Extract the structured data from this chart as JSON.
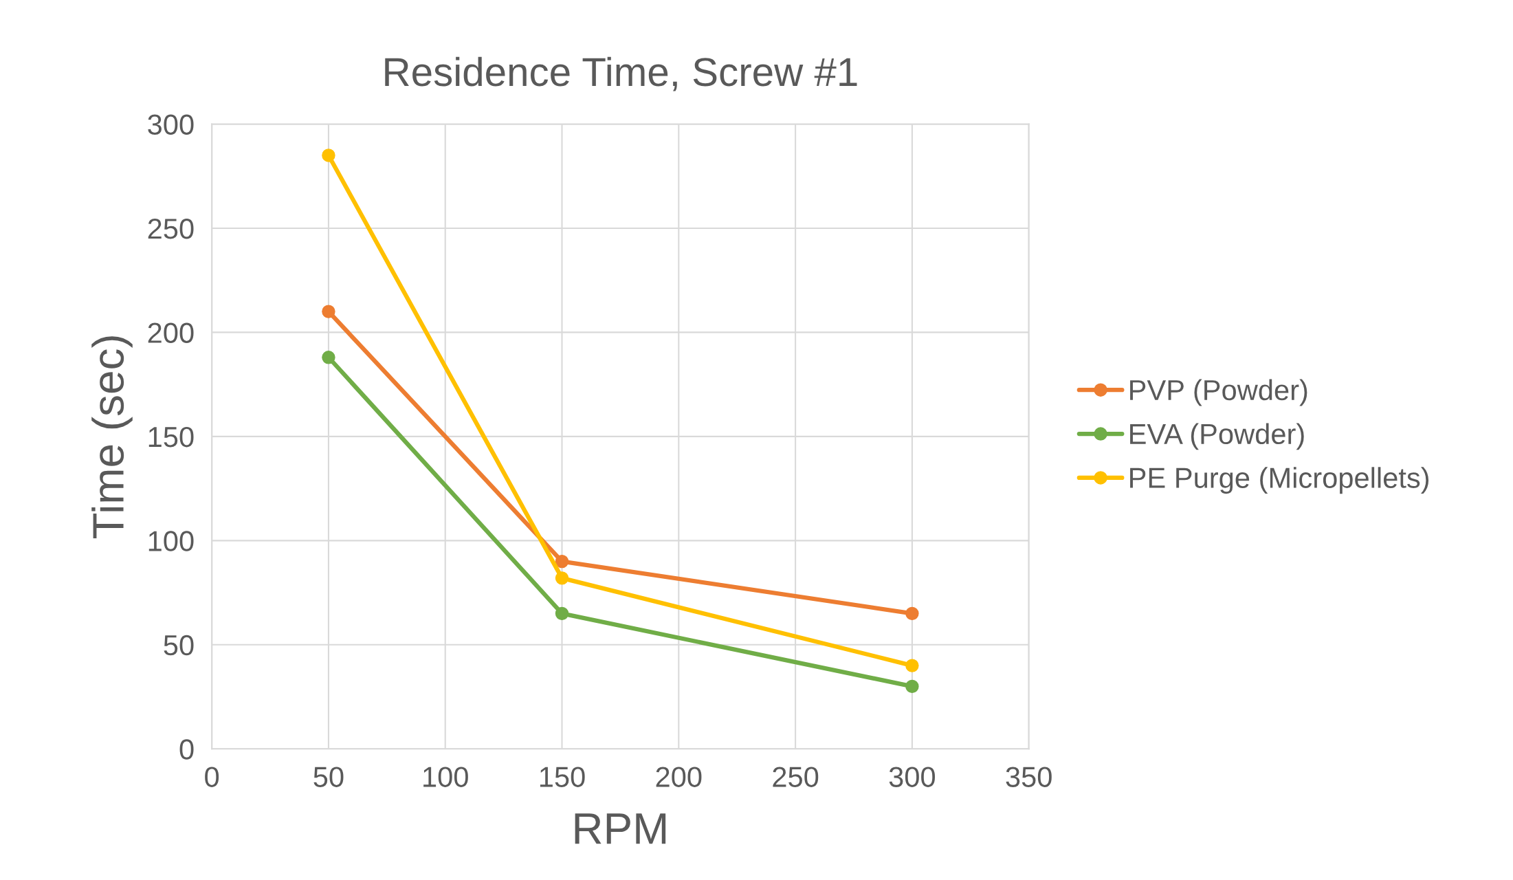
{
  "chart_data": {
    "type": "line",
    "title": "Residence Time, Screw #1",
    "xlabel": "RPM",
    "ylabel": "Time (sec)",
    "x": [
      50,
      150,
      300
    ],
    "series": [
      {
        "name": "PVP (Powder)",
        "color": "#ed7d31",
        "values": [
          210,
          90,
          65
        ]
      },
      {
        "name": "EVA (Powder)",
        "color": "#70ad47",
        "values": [
          188,
          65,
          30
        ]
      },
      {
        "name": "PE Purge (Micropellets)",
        "color": "#ffc000",
        "values": [
          285,
          82,
          40
        ]
      }
    ],
    "xlim": [
      0,
      350
    ],
    "xticks": [
      0,
      50,
      100,
      150,
      200,
      250,
      300,
      350
    ],
    "ylim": [
      0,
      300
    ],
    "yticks": [
      0,
      50,
      100,
      150,
      200,
      250,
      300
    ],
    "grid": true,
    "legend": "right",
    "marker": "circle",
    "line_style": "solid"
  }
}
